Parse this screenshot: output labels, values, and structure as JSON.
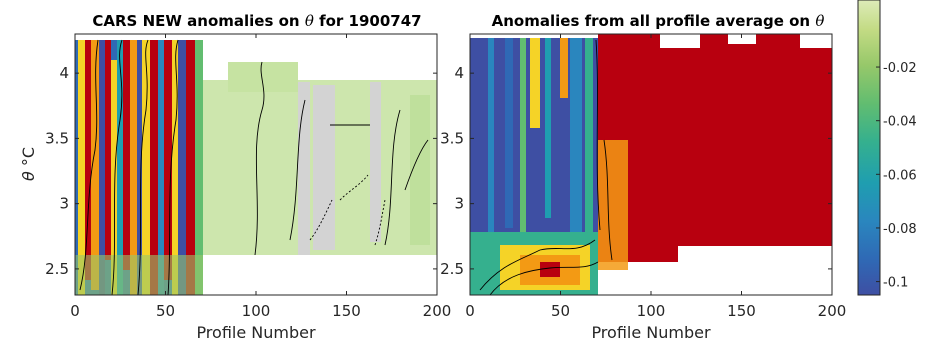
{
  "chart_data": [
    {
      "type": "heatmap",
      "title_prefix": "CARS NEW anomalies on ",
      "title_symbol": "θ",
      "title_suffix": " for 1900747",
      "xlabel": "Profile Number",
      "ylabel_symbol": "θ",
      "ylabel_unit": "°C",
      "xlim": [
        0,
        200
      ],
      "ylim": [
        2.3,
        4.3
      ],
      "x_ticks": [
        "0",
        "50",
        "100",
        "150",
        "200"
      ],
      "y_ticks": [
        "2.5",
        "3",
        "3.5",
        "4"
      ],
      "field": {
        "region_1": {
          "x": [
            0,
            70
          ],
          "y": [
            2.3,
            4.25
          ],
          "values": "mixed high-variance, approximately -0.1 to -0.01 and above"
        },
        "region_2": {
          "x": [
            70,
            200
          ],
          "y": [
            2.6,
            4.0
          ],
          "values": "about -0.03 to -0.04, with grey (near-zero/missing) columns near 130 and 175"
        }
      }
    },
    {
      "type": "heatmap",
      "title_prefix": "Anomalies from all profile average on ",
      "title_symbol": "θ",
      "xlabel": "Profile Number",
      "xlim": [
        0,
        200
      ],
      "ylim": [
        2.3,
        4.3
      ],
      "x_ticks": [
        "0",
        "50",
        "100",
        "150",
        "200"
      ],
      "y_ticks": [
        "2.5",
        "3",
        "3.5",
        "4"
      ],
      "field": {
        "region_1": {
          "x": [
            0,
            70
          ],
          "y": [
            2.3,
            4.25
          ],
          "values": "mostly about -0.1, with warmer values near the bottom"
        },
        "region_2": {
          "x": [
            70,
            200
          ],
          "y": [
            2.65,
            4.25
          ],
          "values": "about 0 (saturated, above the colour range)"
        }
      }
    }
  ],
  "colorbar": {
    "ticks": [
      "-0.02",
      "-0.04",
      "-0.06",
      "-0.08",
      "-0.1"
    ],
    "tick_values": [
      -0.02,
      -0.04,
      -0.06,
      -0.08,
      -0.1
    ],
    "range": [
      -0.105,
      0.005
    ],
    "colormap": "parula",
    "colors": [
      "#3e4fa3",
      "#2f69b5",
      "#2a86be",
      "#1f9eb0",
      "#35b08e",
      "#62bd70",
      "#97c86a",
      "#c3db84",
      "#ddebb8"
    ]
  },
  "colors": {
    "saturated_high": "#b8000f",
    "missing": "#d3d3d3",
    "yellow": "#f5d327",
    "orange": "#f39a14"
  }
}
